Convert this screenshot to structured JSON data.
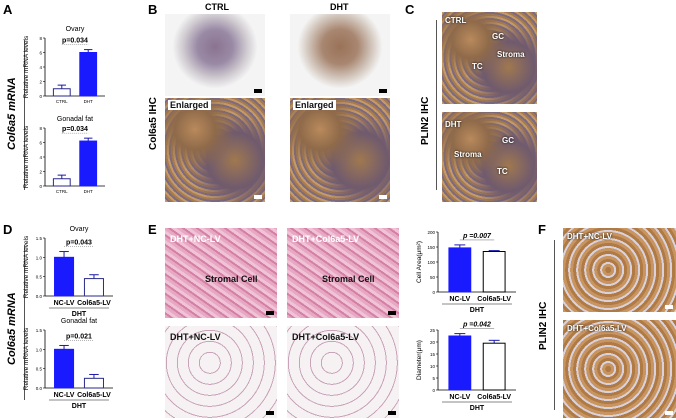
{
  "panels": {
    "A": "A",
    "B": "B",
    "C": "C",
    "D": "D",
    "E": "E",
    "F": "F"
  },
  "side_labels": {
    "col6a5_mrna_top": "Col6a5 mRNA",
    "col6a5_ihc": "Col6a5 IHC",
    "plin2_ihc_c": "PLIN2 IHC",
    "col6a5_mrna_bottom": "Col6a5 mRNA",
    "plin2_ihc_f": "PLIN2 IHC"
  },
  "panel_b": {
    "ctrl": "CTRL",
    "dht": "DHT",
    "enlarged1": "Enlarged",
    "enlarged2": "Enlarged"
  },
  "panel_c": {
    "top": {
      "ctrl": "CTRL",
      "gc": "GC",
      "tc": "TC",
      "stroma": "Stroma"
    },
    "bottom": {
      "dht": "DHT",
      "gc": "GC",
      "tc": "TC",
      "stroma": "Stroma"
    }
  },
  "panel_e": {
    "nc1": "DHT+NC-LV",
    "col1": "DHT+Col6a5-LV",
    "stromal1": "Stromal Cell",
    "stromal2": "Stromal Cell",
    "nc2": "DHT+NC-LV",
    "col2": "DHT+Col6a5-LV"
  },
  "panel_f": {
    "nc": "DHT+NC-LV",
    "col": "DHT+Col6a5-LV"
  },
  "chart_data": [
    {
      "type": "bar",
      "title": "Ovary",
      "ylabel": "Relative mRNA levels",
      "categories": [
        "CTRL",
        "DHT"
      ],
      "values": [
        1.0,
        6.0
      ],
      "errors": [
        0.5,
        0.4
      ],
      "ylim": [
        0,
        8
      ],
      "yticks": [
        0,
        2,
        4,
        6,
        8
      ],
      "annotation": "p=0.034",
      "colors": [
        "#ffffff",
        "#1a1aff"
      ]
    },
    {
      "type": "bar",
      "title": "Gonadal fat",
      "ylabel": "Relative mRNA levels",
      "categories": [
        "CTRL",
        "DHT"
      ],
      "values": [
        1.0,
        6.2
      ],
      "errors": [
        0.5,
        0.4
      ],
      "ylim": [
        0,
        8
      ],
      "yticks": [
        0,
        2,
        4,
        6,
        8
      ],
      "annotation": "p=0.034",
      "colors": [
        "#ffffff",
        "#1a1aff"
      ]
    },
    {
      "type": "bar",
      "title": "Ovary",
      "ylabel": "Relative mRNA levels",
      "categories": [
        "NC-LV",
        "Col6a5-LV"
      ],
      "values": [
        1.0,
        0.45
      ],
      "errors": [
        0.15,
        0.1
      ],
      "ylim": [
        0,
        1.5
      ],
      "yticks": [
        "0.0",
        "0.5",
        "1.0",
        "1.5"
      ],
      "annotation": "p=0.043",
      "group_label": "DHT",
      "colors": [
        "#1a1aff",
        "#ffffff"
      ]
    },
    {
      "type": "bar",
      "title": "Gonadal fat",
      "ylabel": "Relative mRNA levels",
      "categories": [
        "NC-LV",
        "Col6a5-LV"
      ],
      "values": [
        1.0,
        0.25
      ],
      "errors": [
        0.1,
        0.1
      ],
      "ylim": [
        0,
        1.5
      ],
      "yticks": [
        "0.0",
        "0.5",
        "1.0",
        "1.5"
      ],
      "annotation": "p=0.021",
      "group_label": "DHT",
      "colors": [
        "#1a1aff",
        "#ffffff"
      ]
    },
    {
      "type": "bar",
      "title": "",
      "ylabel": "Cell Area(μm²)",
      "categories": [
        "NC-LV",
        "Col6a5-LV"
      ],
      "values": [
        147,
        135
      ],
      "errors": [
        10,
        3
      ],
      "ylim": [
        0,
        200
      ],
      "yticks": [
        0,
        50,
        100,
        150,
        200
      ],
      "annotation": "p =0.007",
      "group_label": "DHT",
      "colors": [
        "#1a1aff",
        "#ffffff"
      ]
    },
    {
      "type": "bar",
      "title": "",
      "ylabel": "Diameter(μm)",
      "categories": [
        "NC-LV",
        "Col6a5-LV"
      ],
      "values": [
        22.5,
        19.5
      ],
      "errors": [
        1,
        1.2
      ],
      "ylim": [
        0,
        25
      ],
      "yticks": [
        0,
        5,
        10,
        15,
        20,
        25
      ],
      "annotation": "p =0.042",
      "group_label": "DHT",
      "colors": [
        "#1a1aff",
        "#ffffff"
      ]
    }
  ]
}
